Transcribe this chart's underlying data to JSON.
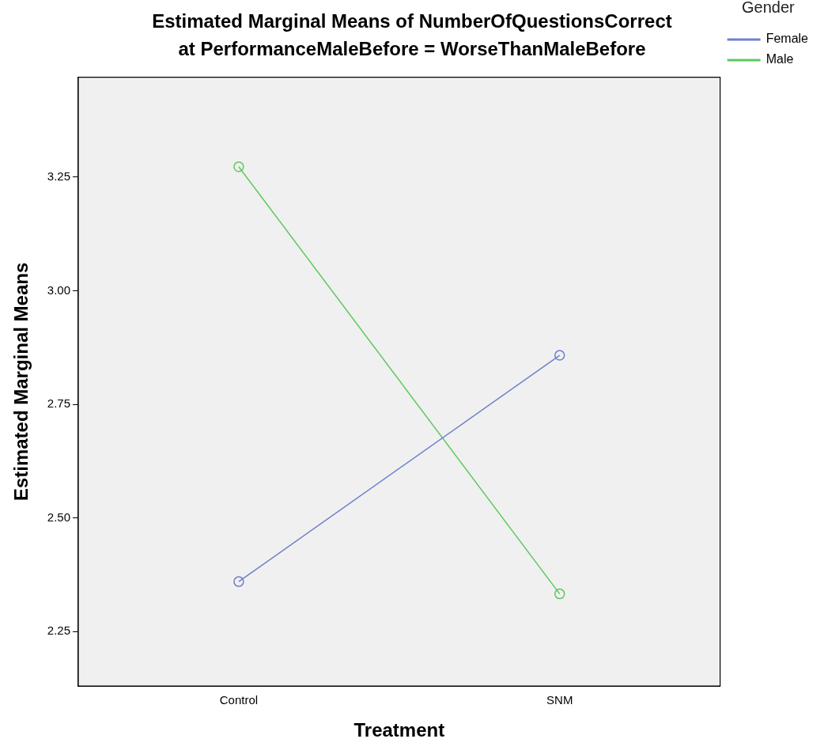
{
  "chart_data": {
    "type": "line",
    "title": "Estimated Marginal Means of NumberOfQuestionsCorrect",
    "subtitle": "at PerformanceMaleBefore = WorseThanMaleBefore",
    "xlabel": "Treatment",
    "ylabel": "Estimated Marginal Means",
    "legend_title": "Gender",
    "categories": [
      "Control",
      "SNM"
    ],
    "series": [
      {
        "name": "Female",
        "color": "#6f80cc",
        "values": [
          2.36,
          2.858
        ]
      },
      {
        "name": "Male",
        "color": "#5ec75e",
        "values": [
          3.273,
          2.333
        ]
      }
    ],
    "ylim": [
      2.13,
      3.47
    ],
    "yticks": [
      {
        "value": 2.25,
        "label": "2.25"
      },
      {
        "value": 2.5,
        "label": "2.50"
      },
      {
        "value": 2.75,
        "label": "2.75"
      },
      {
        "value": 3,
        "label": "3.00"
      },
      {
        "value": 3.25,
        "label": "3.25"
      }
    ],
    "grid": false,
    "legend": "top right",
    "marker": "circle",
    "line_style": "solid"
  }
}
